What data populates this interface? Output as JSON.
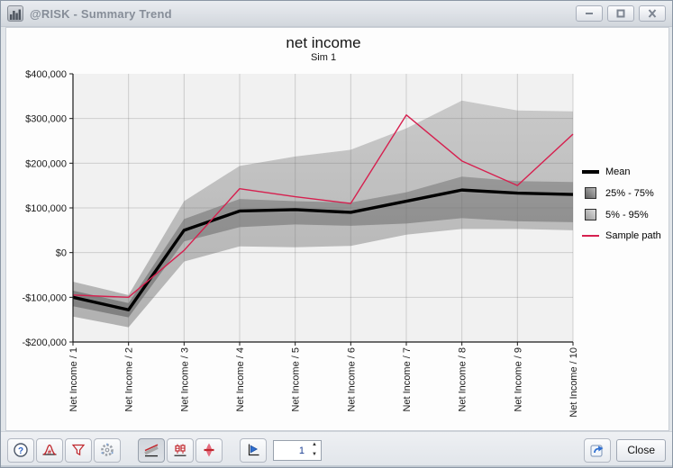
{
  "window": {
    "title": "@RISK - Summary Trend"
  },
  "chart_data": {
    "type": "line",
    "title": "net income",
    "subtitle": "Sim 1",
    "categories": [
      "Net Income / 1",
      "Net Income / 2",
      "Net Income / 3",
      "Net Income / 4",
      "Net Income / 5",
      "Net Income / 6",
      "Net Income / 7",
      "Net Income / 8",
      "Net Income / 9",
      "Net Income / 10"
    ],
    "ylim": [
      -200000,
      400000
    ],
    "y_axis": {
      "tick_values": [
        400000,
        300000,
        200000,
        100000,
        0,
        -100000,
        -200000
      ],
      "tick_labels": [
        "$400,000",
        "$300,000",
        "$200,000",
        "$100,000",
        "$0",
        "-$100,000",
        "-$200,000"
      ]
    },
    "grid": true,
    "legend_position": "right",
    "series": [
      {
        "name": "Mean",
        "type": "line",
        "color": "#000000",
        "values": [
          -100000,
          -128000,
          50000,
          93000,
          96000,
          90000,
          115000,
          140000,
          133000,
          130000
        ]
      },
      {
        "name": "25% - 75%",
        "type": "band",
        "color": "#8c8c8c",
        "high": [
          -85000,
          -113000,
          75000,
          120000,
          115000,
          112000,
          135000,
          170000,
          160000,
          158000
        ],
        "low": [
          -120000,
          -145000,
          25000,
          57000,
          63000,
          60000,
          65000,
          77000,
          70000,
          68000
        ]
      },
      {
        "name": "5% - 95%",
        "type": "band",
        "color": "#bdbdbd",
        "high": [
          -65000,
          -95000,
          115000,
          194000,
          215000,
          230000,
          278000,
          340000,
          318000,
          316000
        ],
        "low": [
          -143000,
          -167000,
          -20000,
          14000,
          12000,
          15000,
          40000,
          53000,
          53000,
          50000
        ]
      },
      {
        "name": "Sample path",
        "type": "line",
        "color": "#d6204f",
        "values": [
          -95000,
          -100000,
          5000,
          143000,
          125000,
          110000,
          308000,
          205000,
          150000,
          265000
        ]
      }
    ]
  },
  "toolbar": {
    "icon_names": [
      "help-icon",
      "distribution-icon",
      "filter-icon",
      "settings-icon",
      "trend-bands-icon",
      "box-plot-icon",
      "distribution-band-icon",
      "animate-icon",
      "export-icon"
    ],
    "spinner_value": "1",
    "close_label": "Close"
  },
  "colors": {
    "sample_path": "#d6204f",
    "mean": "#000000",
    "band_inner": "#8c8c8c",
    "band_outer": "#bdbdbd",
    "plot_background": "#f1f1f1",
    "grid_line": "#d9d9d9"
  }
}
